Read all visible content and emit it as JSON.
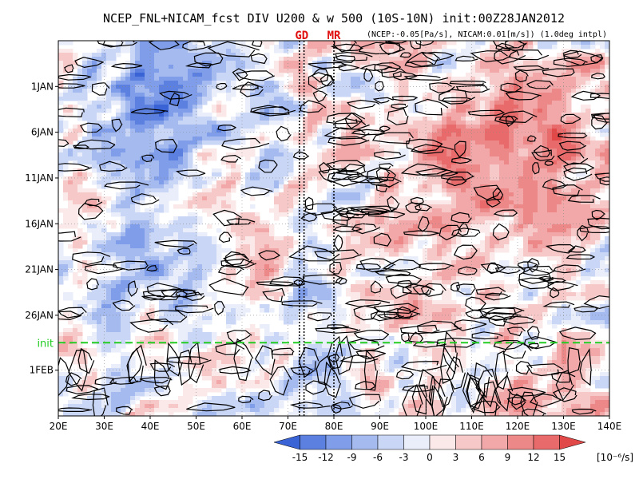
{
  "chart_data": {
    "type": "heatmap",
    "title": "NCEP_FNL+NICAM_fcst DIV U200 & w 500 (10S-10N) init:00Z28JAN2012",
    "subtitle": "(NCEP:-0.05[Pa/s], NICAM:0.01[m/s]) (1.0deg intpl)",
    "x_ticks": [
      "20E",
      "30E",
      "40E",
      "50E",
      "60E",
      "70E",
      "80E",
      "90E",
      "100E",
      "110E",
      "120E",
      "130E",
      "140E"
    ],
    "x_range": [
      20,
      140
    ],
    "y_ticks": [
      "1JAN",
      "6JAN",
      "11JAN",
      "16JAN",
      "21JAN",
      "26JAN",
      "1FEB"
    ],
    "y_range_days": [
      -5,
      36
    ],
    "markers": [
      {
        "label": "GD",
        "lon": 73
      },
      {
        "label": "MR",
        "lon": 80
      }
    ],
    "marker_lines_lon": [
      72.5,
      73.5,
      80
    ],
    "init_line": {
      "label": "init",
      "day": 28,
      "color": "#22cc22"
    },
    "colorbar": {
      "levels": [
        "-15",
        "-12",
        "-9",
        "-6",
        "-3",
        "0",
        "3",
        "6",
        "9",
        "12",
        "15"
      ],
      "unit": "[10⁻⁶/s]",
      "colors": [
        "#3a63d6",
        "#5b80e0",
        "#7f9de8",
        "#a5bbf0",
        "#c9d6f6",
        "#eaeefb",
        "#fbe8e8",
        "#f7c8c8",
        "#f2a8a8",
        "#ec8888",
        "#e86a6a",
        "#e14848"
      ]
    },
    "shading_pattern": "noisy divergence field: blue (convergence) regions at upper-left 30E-60E early January, red (divergence) band 100E-135E around 6JAN-16JAN, contours of negative w500 concentrated east of 80E"
  }
}
